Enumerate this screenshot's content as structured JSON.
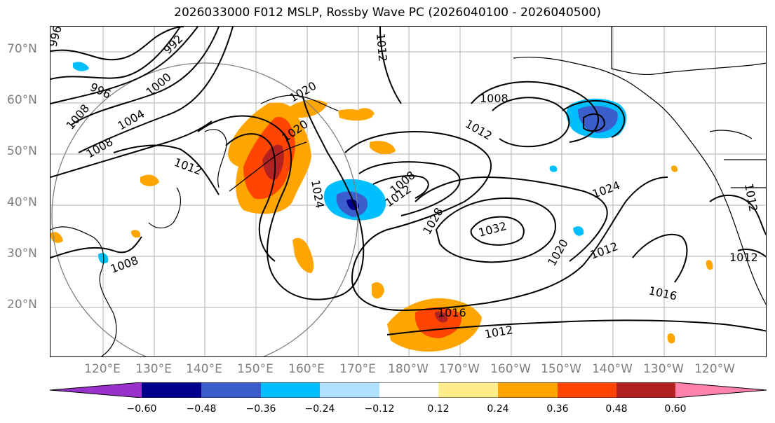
{
  "title": "2026033000 F012 MSLP, Rossby Wave PC (2026040100 - 2026040500)",
  "lat_labels": [
    "70°N",
    "60°N",
    "50°N",
    "40°N",
    "30°N",
    "20°N"
  ],
  "lon_labels": [
    "120°E",
    "130°E",
    "140°E",
    "150°E",
    "160°E",
    "170°E",
    "180°W",
    "170°W",
    "160°W",
    "150°W",
    "140°W",
    "130°W",
    "120°W"
  ],
  "isobar_labels": [
    "996",
    "996",
    "992",
    "1000",
    "1008",
    "1004",
    "1008",
    "1012",
    "1012",
    "1020",
    "1020",
    "1008",
    "1008",
    "1012",
    "1012",
    "1024",
    "1028",
    "1032",
    "1024",
    "1020",
    "1012",
    "1016",
    "1016",
    "1012",
    "1012",
    "1012",
    "1008"
  ],
  "colorbar": {
    "tick_labels": [
      "−0.60",
      "−0.48",
      "−0.36",
      "−0.24",
      "−0.12",
      "0.12",
      "0.24",
      "0.36",
      "0.48",
      "0.60"
    ],
    "colors": [
      "#9932cc",
      "#00008b",
      "#3a5fcd",
      "#00bfff",
      "#b0e2ff",
      "#ffffff",
      "#ffec8b",
      "#ffa500",
      "#ff4500",
      "#b22222",
      "#ff82ab"
    ]
  },
  "colors": {
    "negative_strong": "#3a5fcd",
    "negative_medium": "#00bfff",
    "negative_weak": "#b0e2ff",
    "positive_weak": "#ffec8b",
    "positive_medium": "#ffa500",
    "positive_strong": "#ff4500",
    "positive_max": "#b22222"
  }
}
